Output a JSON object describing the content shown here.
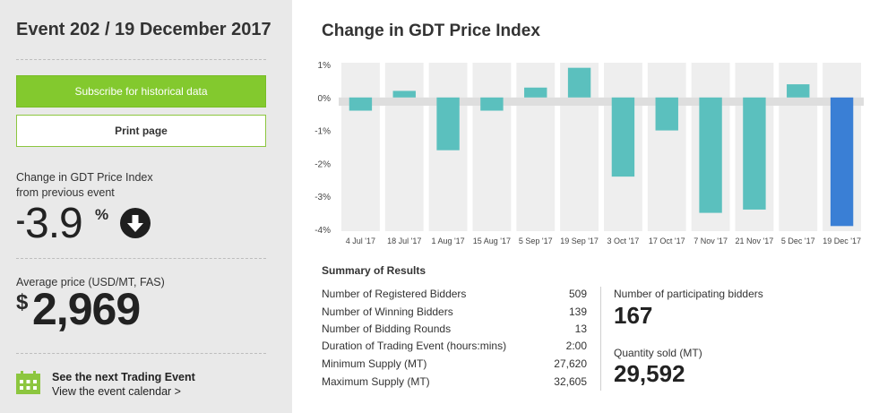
{
  "event": {
    "title": "Event 202 / 19 December 2017"
  },
  "actions": {
    "subscribe_label": "Subscribe for historical data",
    "print_label": "Print page"
  },
  "change": {
    "label_line1": "Change in GDT Price Index",
    "label_line2": "from previous event",
    "sign": "-",
    "value": "3.9",
    "unit": "%",
    "direction_icon": "arrow-down-circle-icon"
  },
  "average_price": {
    "label": "Average price (USD/MT, FAS)",
    "currency": "$",
    "value": "2,969"
  },
  "next_event": {
    "icon": "calendar-icon",
    "title": "See the next Trading Event",
    "link": "View the event calendar >"
  },
  "colors": {
    "positive_bar": "#5bc0be",
    "negative_bar": "#5bc0be",
    "latest_bar": "#3a7fd5",
    "column_band": "#eeeeee",
    "zero_band": "#dedede",
    "button_green": "#83c92e"
  },
  "chart_data": {
    "type": "bar",
    "title": "Change in GDT Price Index",
    "categories": [
      "4 Jul '17",
      "18 Jul '17",
      "1 Aug '17",
      "15 Aug '17",
      "5 Sep '17",
      "19 Sep '17",
      "3 Oct '17",
      "17 Oct '17",
      "7 Nov '17",
      "21 Nov '17",
      "5 Dec '17",
      "19 Dec '17"
    ],
    "values": [
      -0.4,
      0.2,
      -1.6,
      -0.4,
      0.3,
      0.9,
      -2.4,
      -1.0,
      -3.5,
      -3.4,
      0.4,
      -3.9
    ],
    "ylim": [
      -4,
      1
    ],
    "yticks": [
      1,
      0,
      -1,
      -2,
      -3,
      -4
    ],
    "ytick_labels": [
      "1%",
      "0%",
      "-1%",
      "-2%",
      "-3%",
      "-4%"
    ],
    "highlight_last": true,
    "grid": false
  },
  "summary": {
    "title": "Summary of Results",
    "rows": [
      {
        "label": "Number of Registered Bidders",
        "value": "509"
      },
      {
        "label": "Number of Winning Bidders",
        "value": "139"
      },
      {
        "label": "Number of Bidding Rounds",
        "value": "13"
      },
      {
        "label": "Duration of Trading Event (hours:mins)",
        "value": "2:00"
      },
      {
        "label": "Minimum Supply (MT)",
        "value": "27,620"
      },
      {
        "label": "Maximum Supply (MT)",
        "value": "32,605"
      }
    ],
    "participating_label": "Number of participating bidders",
    "participating_value": "167",
    "quantity_label": "Quantity sold (MT)",
    "quantity_value": "29,592"
  }
}
